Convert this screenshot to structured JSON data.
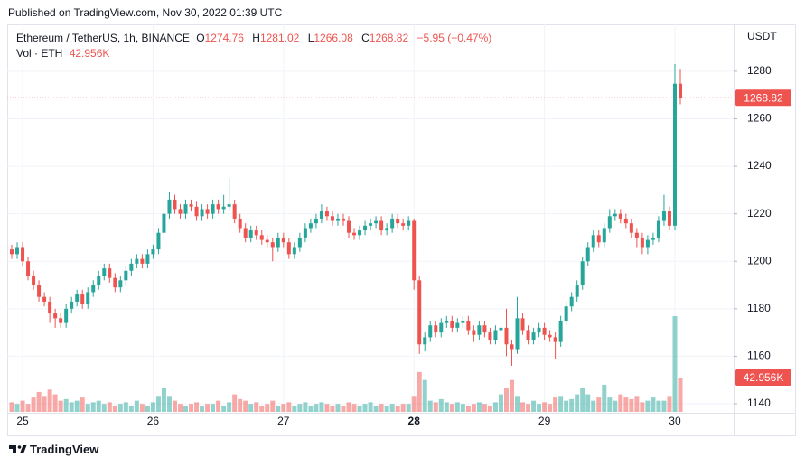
{
  "header": {
    "published": "Published on TradingView.com, Nov 30, 2022 01:39 UTC"
  },
  "chart_data": {
    "type": "candlestick",
    "title": "Ethereum / TetherUS, 1h, BINANCE",
    "ohlc_labels": [
      "O",
      "H",
      "L",
      "C"
    ],
    "change": "−5.95 (−0.47%)",
    "volume_name": "Vol · ETH",
    "volume_label": "42.956K",
    "unit": "USDT",
    "up_color": "#26a69a",
    "down_color": "#ef5350",
    "grid": true,
    "categories": [
      null,
      null,
      "25",
      null,
      null,
      null,
      null,
      null,
      null,
      null,
      null,
      null,
      null,
      null,
      null,
      null,
      null,
      null,
      null,
      null,
      null,
      null,
      null,
      null,
      null,
      null,
      "26",
      null,
      null,
      null,
      null,
      null,
      null,
      null,
      null,
      null,
      null,
      null,
      null,
      null,
      null,
      null,
      null,
      null,
      null,
      null,
      null,
      null,
      null,
      null,
      "27",
      null,
      null,
      null,
      null,
      null,
      null,
      null,
      null,
      null,
      null,
      null,
      null,
      null,
      null,
      null,
      null,
      null,
      null,
      null,
      null,
      null,
      null,
      null,
      "28",
      null,
      null,
      null,
      null,
      null,
      null,
      null,
      null,
      null,
      null,
      null,
      null,
      null,
      null,
      null,
      null,
      null,
      null,
      null,
      null,
      null,
      null,
      null,
      "29",
      null,
      null,
      null,
      null,
      null,
      null,
      null,
      null,
      null,
      null,
      null,
      null,
      null,
      null,
      null,
      null,
      null,
      null,
      null,
      null,
      null,
      null,
      null,
      "30",
      null
    ],
    "open": [
      1205,
      1203,
      1206,
      1200,
      1194,
      1190,
      1185,
      1183,
      1178,
      1176,
      1174,
      1180,
      1183,
      1186,
      1182,
      1187,
      1190,
      1194,
      1197,
      1193,
      1189,
      1192,
      1196,
      1199,
      1201,
      1199,
      1203,
      1205,
      1212,
      1220,
      1226,
      1222,
      1220,
      1224,
      1223,
      1219,
      1222,
      1220,
      1224,
      1222,
      1223,
      1224,
      1218,
      1214,
      1210,
      1213,
      1211,
      1209,
      1208,
      1206,
      1210,
      1208,
      1203,
      1206,
      1210,
      1214,
      1216,
      1218,
      1221,
      1219,
      1217,
      1218,
      1217,
      1212,
      1211,
      1213,
      1215,
      1216,
      1217,
      1213,
      1214,
      1218,
      1216,
      1215,
      1217,
      1192,
      1165,
      1168,
      1173,
      1170,
      1174,
      1175,
      1172,
      1174,
      1175,
      1171,
      1169,
      1173,
      1170,
      1167,
      1171,
      1172,
      1165,
      1163,
      1176,
      1171,
      1167,
      1170,
      1172,
      1169,
      1168,
      1166,
      1175,
      1181,
      1185,
      1190,
      1200,
      1206,
      1211,
      1208,
      1214,
      1219,
      1220,
      1218,
      1216,
      1212,
      1210,
      1206,
      1209,
      1210,
      1217,
      1221,
      1215,
      1274.76
    ],
    "high": [
      1207,
      1208,
      1208,
      1202,
      1196,
      1192,
      1187,
      1185,
      1180,
      1178,
      1182,
      1185,
      1188,
      1188,
      1189,
      1192,
      1196,
      1199,
      1199,
      1195,
      1194,
      1198,
      1201,
      1203,
      1203,
      1205,
      1207,
      1214,
      1222,
      1229,
      1228,
      1224,
      1226,
      1226,
      1225,
      1224,
      1224,
      1226,
      1226,
      1228,
      1235,
      1226,
      1220,
      1216,
      1215,
      1215,
      1213,
      1211,
      1210,
      1212,
      1212,
      1210,
      1208,
      1212,
      1216,
      1218,
      1220,
      1224,
      1223,
      1221,
      1220,
      1220,
      1219,
      1214,
      1215,
      1217,
      1218,
      1219,
      1219,
      1216,
      1220,
      1220,
      1218,
      1219,
      1218,
      1194,
      1170,
      1175,
      1175,
      1176,
      1177,
      1177,
      1176,
      1177,
      1177,
      1173,
      1175,
      1175,
      1172,
      1173,
      1174,
      1180,
      1167,
      1185,
      1178,
      1173,
      1172,
      1174,
      1174,
      1171,
      1170,
      1177,
      1183,
      1187,
      1192,
      1202,
      1208,
      1213,
      1213,
      1216,
      1222,
      1222,
      1222,
      1220,
      1218,
      1214,
      1212,
      1211,
      1212,
      1219,
      1228,
      1223,
      1283,
      1281.02
    ],
    "low": [
      1201,
      1201,
      1198,
      1192,
      1188,
      1183,
      1181,
      1174,
      1172,
      1172,
      1172,
      1178,
      1181,
      1180,
      1180,
      1185,
      1188,
      1192,
      1191,
      1187,
      1187,
      1190,
      1194,
      1197,
      1197,
      1197,
      1201,
      1203,
      1210,
      1218,
      1220,
      1218,
      1218,
      1221,
      1217,
      1217,
      1218,
      1218,
      1220,
      1220,
      1221,
      1216,
      1212,
      1208,
      1208,
      1209,
      1207,
      1206,
      1200,
      1204,
      1206,
      1201,
      1201,
      1204,
      1208,
      1212,
      1214,
      1216,
      1217,
      1215,
      1215,
      1215,
      1210,
      1209,
      1209,
      1211,
      1213,
      1214,
      1211,
      1211,
      1212,
      1214,
      1213,
      1213,
      1188,
      1161,
      1162,
      1166,
      1168,
      1168,
      1172,
      1170,
      1170,
      1172,
      1169,
      1166,
      1167,
      1168,
      1165,
      1165,
      1169,
      1160,
      1156,
      1161,
      1169,
      1165,
      1165,
      1168,
      1167,
      1166,
      1159,
      1164,
      1173,
      1179,
      1183,
      1188,
      1198,
      1204,
      1206,
      1206,
      1212,
      1217,
      1216,
      1214,
      1210,
      1206,
      1203,
      1203,
      1207,
      1208,
      1215,
      1213,
      1213,
      1266.08
    ],
    "close": [
      1203,
      1206,
      1200,
      1194,
      1190,
      1185,
      1183,
      1178,
      1176,
      1174,
      1180,
      1183,
      1186,
      1182,
      1187,
      1190,
      1194,
      1197,
      1193,
      1189,
      1192,
      1196,
      1199,
      1201,
      1199,
      1203,
      1205,
      1212,
      1220,
      1226,
      1222,
      1220,
      1224,
      1223,
      1219,
      1222,
      1220,
      1224,
      1222,
      1223,
      1224,
      1218,
      1214,
      1210,
      1213,
      1211,
      1209,
      1208,
      1206,
      1210,
      1208,
      1203,
      1206,
      1210,
      1214,
      1216,
      1218,
      1221,
      1219,
      1217,
      1218,
      1217,
      1212,
      1211,
      1213,
      1215,
      1216,
      1217,
      1213,
      1214,
      1218,
      1216,
      1215,
      1217,
      1192,
      1165,
      1168,
      1173,
      1170,
      1174,
      1175,
      1172,
      1174,
      1175,
      1171,
      1169,
      1173,
      1170,
      1167,
      1171,
      1172,
      1165,
      1163,
      1176,
      1171,
      1167,
      1170,
      1172,
      1169,
      1168,
      1166,
      1175,
      1181,
      1185,
      1190,
      1200,
      1206,
      1211,
      1208,
      1214,
      1219,
      1220,
      1218,
      1216,
      1212,
      1210,
      1206,
      1209,
      1210,
      1217,
      1221,
      1215,
      1274.76,
      1268.82
    ],
    "volume": [
      12,
      10,
      14,
      10,
      18,
      25,
      20,
      28,
      22,
      14,
      16,
      12,
      14,
      18,
      10,
      12,
      14,
      10,
      12,
      8,
      10,
      12,
      8,
      14,
      10,
      8,
      12,
      20,
      30,
      20,
      14,
      10,
      8,
      10,
      12,
      8,
      10,
      10,
      14,
      8,
      12,
      22,
      16,
      14,
      10,
      12,
      8,
      10,
      14,
      8,
      10,
      12,
      8,
      10,
      12,
      8,
      10,
      12,
      10,
      8,
      10,
      8,
      12,
      10,
      8,
      10,
      12,
      8,
      10,
      8,
      10,
      8,
      10,
      10,
      20,
      50,
      40,
      14,
      12,
      16,
      12,
      10,
      12,
      10,
      8,
      10,
      12,
      10,
      8,
      12,
      22,
      30,
      40,
      20,
      12,
      10,
      14,
      10,
      12,
      10,
      18,
      20,
      14,
      16,
      22,
      30,
      22,
      14,
      18,
      34,
      18,
      14,
      22,
      18,
      16,
      20,
      12,
      14,
      18,
      14,
      14,
      20,
      120,
      42.956
    ],
    "ylim": [
      1136.2,
      1298.6
    ],
    "yticks": [
      1140,
      1160,
      1180,
      1200,
      1220,
      1240,
      1260,
      1280
    ]
  },
  "footer": {
    "brand": "TradingView"
  }
}
